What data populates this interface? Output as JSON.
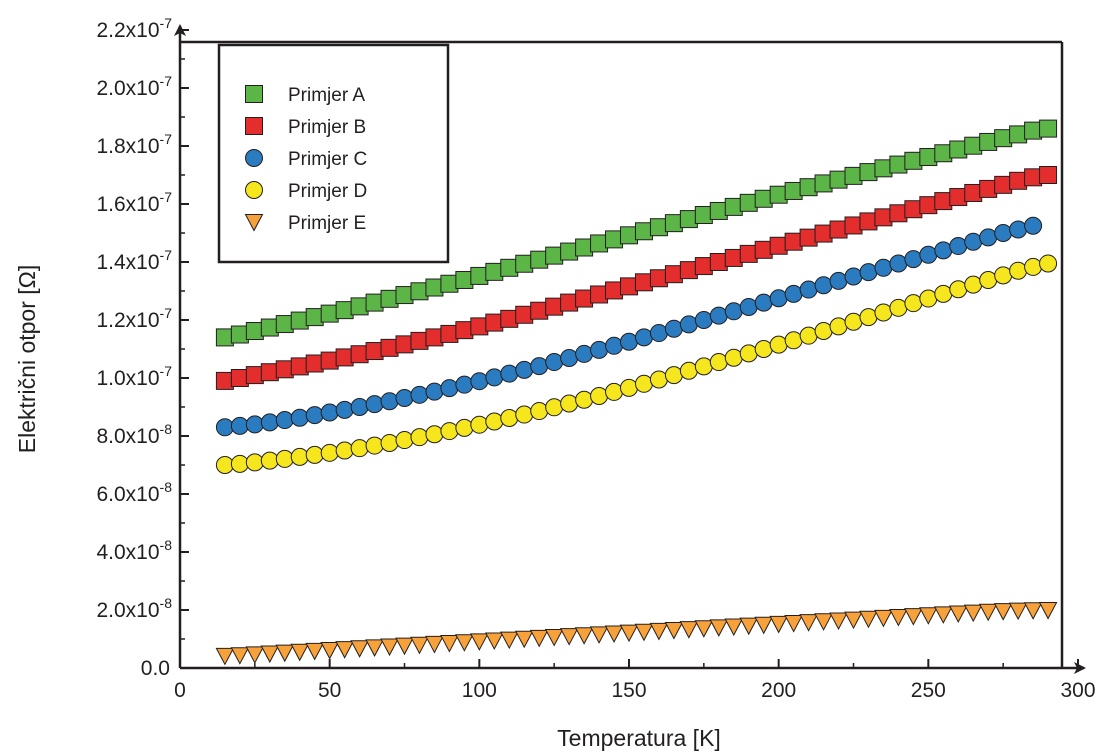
{
  "chart_data": {
    "type": "scatter",
    "xlabel": "Temperatura [K]",
    "ylabel": "Električni otpor [Ω]",
    "xlim": [
      0,
      300
    ],
    "ylim": [
      0,
      2.2e-07
    ],
    "x_ticks": [
      {
        "value": 0,
        "label": "0"
      },
      {
        "value": 50,
        "label": "50"
      },
      {
        "value": 100,
        "label": "100"
      },
      {
        "value": 150,
        "label": "150"
      },
      {
        "value": 200,
        "label": "200"
      },
      {
        "value": 250,
        "label": "250"
      },
      {
        "value": 300,
        "label": "300"
      }
    ],
    "y_ticks": [
      {
        "value": 0,
        "mantissa": "0.0",
        "exponent": ""
      },
      {
        "value": 2e-08,
        "mantissa": "2.0x10",
        "exponent": "-8"
      },
      {
        "value": 4e-08,
        "mantissa": "4.0x10",
        "exponent": "-8"
      },
      {
        "value": 6e-08,
        "mantissa": "6.0x10",
        "exponent": "-8"
      },
      {
        "value": 8e-08,
        "mantissa": "8.0x10",
        "exponent": "-8"
      },
      {
        "value": 1e-07,
        "mantissa": "1.0x10",
        "exponent": "-7"
      },
      {
        "value": 1.2e-07,
        "mantissa": "1.2x10",
        "exponent": "-7"
      },
      {
        "value": 1.4e-07,
        "mantissa": "1.4x10",
        "exponent": "-7"
      },
      {
        "value": 1.6e-07,
        "mantissa": "1.6x10",
        "exponent": "-7"
      },
      {
        "value": 1.8e-07,
        "mantissa": "1.8x10",
        "exponent": "-7"
      },
      {
        "value": 2e-07,
        "mantissa": "2.0x10",
        "exponent": "-7"
      },
      {
        "value": 2.2e-07,
        "mantissa": "2.2x10",
        "exponent": "-7"
      }
    ],
    "grid": false,
    "legend_position": "top-left",
    "series": [
      {
        "name": "Primjer A",
        "marker": "square",
        "color": "#5cb547",
        "x": [
          15,
          20,
          25,
          30,
          35,
          40,
          45,
          50,
          55,
          60,
          65,
          70,
          75,
          80,
          85,
          90,
          95,
          100,
          105,
          110,
          115,
          120,
          125,
          130,
          135,
          140,
          145,
          150,
          155,
          160,
          165,
          170,
          175,
          180,
          185,
          190,
          195,
          200,
          205,
          210,
          215,
          220,
          225,
          230,
          235,
          240,
          245,
          250,
          255,
          260,
          265,
          270,
          275,
          280,
          285,
          290
        ],
        "y": [
          1.14e-07,
          1.15e-07,
          1.162e-07,
          1.174e-07,
          1.186e-07,
          1.198e-07,
          1.21e-07,
          1.222e-07,
          1.234e-07,
          1.247e-07,
          1.26e-07,
          1.273e-07,
          1.286e-07,
          1.299e-07,
          1.312e-07,
          1.325e-07,
          1.338e-07,
          1.352e-07,
          1.366e-07,
          1.38e-07,
          1.394e-07,
          1.408e-07,
          1.422e-07,
          1.436e-07,
          1.45e-07,
          1.464e-07,
          1.478e-07,
          1.492e-07,
          1.506e-07,
          1.52e-07,
          1.534e-07,
          1.548e-07,
          1.562e-07,
          1.576e-07,
          1.59e-07,
          1.604e-07,
          1.618e-07,
          1.632e-07,
          1.645e-07,
          1.658e-07,
          1.671e-07,
          1.684e-07,
          1.697e-07,
          1.71e-07,
          1.723e-07,
          1.736e-07,
          1.749e-07,
          1.762e-07,
          1.775e-07,
          1.788e-07,
          1.801e-07,
          1.814e-07,
          1.827e-07,
          1.84e-07,
          1.853e-07,
          1.86e-07
        ]
      },
      {
        "name": "Primjer B",
        "marker": "square",
        "color": "#e42d2d",
        "x": [
          15,
          20,
          25,
          30,
          35,
          40,
          45,
          50,
          55,
          60,
          65,
          70,
          75,
          80,
          85,
          90,
          95,
          100,
          105,
          110,
          115,
          120,
          125,
          130,
          135,
          140,
          145,
          150,
          155,
          160,
          165,
          170,
          175,
          180,
          185,
          190,
          195,
          200,
          205,
          210,
          215,
          220,
          225,
          230,
          235,
          240,
          245,
          250,
          255,
          260,
          265,
          270,
          275,
          280,
          285,
          290
        ],
        "y": [
          9.9e-08,
          1e-07,
          1.01e-07,
          1.02e-07,
          1.03e-07,
          1.04e-07,
          1.05e-07,
          1.06e-07,
          1.071e-07,
          1.082e-07,
          1.093e-07,
          1.104e-07,
          1.116e-07,
          1.128e-07,
          1.14e-07,
          1.152e-07,
          1.165e-07,
          1.178e-07,
          1.191e-07,
          1.204e-07,
          1.218e-07,
          1.232e-07,
          1.246e-07,
          1.26e-07,
          1.274e-07,
          1.288e-07,
          1.302e-07,
          1.316e-07,
          1.33e-07,
          1.344e-07,
          1.358e-07,
          1.372e-07,
          1.386e-07,
          1.4e-07,
          1.414e-07,
          1.428e-07,
          1.442e-07,
          1.456e-07,
          1.47e-07,
          1.484e-07,
          1.498e-07,
          1.512e-07,
          1.526e-07,
          1.54e-07,
          1.554e-07,
          1.568e-07,
          1.582e-07,
          1.596e-07,
          1.61e-07,
          1.624e-07,
          1.638e-07,
          1.652e-07,
          1.666e-07,
          1.68e-07,
          1.692e-07,
          1.7e-07
        ]
      },
      {
        "name": "Primjer C",
        "marker": "circle",
        "color": "#2b7bc0",
        "x": [
          15,
          20,
          25,
          30,
          35,
          40,
          45,
          50,
          55,
          60,
          65,
          70,
          75,
          80,
          85,
          90,
          95,
          100,
          105,
          110,
          115,
          120,
          125,
          130,
          135,
          140,
          145,
          150,
          155,
          160,
          165,
          170,
          175,
          180,
          185,
          190,
          195,
          200,
          205,
          210,
          215,
          220,
          225,
          230,
          235,
          240,
          245,
          250,
          255,
          260,
          265,
          270,
          275,
          280,
          285
        ],
        "y": [
          8.3e-08,
          8.35e-08,
          8.4e-08,
          8.47e-08,
          8.55e-08,
          8.63e-08,
          8.72e-08,
          8.81e-08,
          8.9e-08,
          9e-08,
          9.1e-08,
          9.2e-08,
          9.31e-08,
          9.42e-08,
          9.53e-08,
          9.65e-08,
          9.77e-08,
          9.89e-08,
          1.002e-07,
          1.015e-07,
          1.028e-07,
          1.041e-07,
          1.055e-07,
          1.069e-07,
          1.083e-07,
          1.097e-07,
          1.111e-07,
          1.125e-07,
          1.14e-07,
          1.155e-07,
          1.17e-07,
          1.185e-07,
          1.2e-07,
          1.215e-07,
          1.23e-07,
          1.245e-07,
          1.26e-07,
          1.275e-07,
          1.29e-07,
          1.305e-07,
          1.32e-07,
          1.335e-07,
          1.35e-07,
          1.365e-07,
          1.38e-07,
          1.395e-07,
          1.41e-07,
          1.425e-07,
          1.44e-07,
          1.455e-07,
          1.47e-07,
          1.485e-07,
          1.5e-07,
          1.512e-07,
          1.525e-07
        ]
      },
      {
        "name": "Primjer D",
        "marker": "circle",
        "color": "#f5e61e",
        "x": [
          15,
          20,
          25,
          30,
          35,
          40,
          45,
          50,
          55,
          60,
          65,
          70,
          75,
          80,
          85,
          90,
          95,
          100,
          105,
          110,
          115,
          120,
          125,
          130,
          135,
          140,
          145,
          150,
          155,
          160,
          165,
          170,
          175,
          180,
          185,
          190,
          195,
          200,
          205,
          210,
          215,
          220,
          225,
          230,
          235,
          240,
          245,
          250,
          255,
          260,
          265,
          270,
          275,
          280,
          285,
          290
        ],
        "y": [
          7e-08,
          7.04e-08,
          7.09e-08,
          7.15e-08,
          7.21e-08,
          7.28e-08,
          7.35e-08,
          7.42e-08,
          7.5e-08,
          7.58e-08,
          7.67e-08,
          7.76e-08,
          7.86e-08,
          7.96e-08,
          8.06e-08,
          8.17e-08,
          8.28e-08,
          8.39e-08,
          8.5e-08,
          8.62e-08,
          8.74e-08,
          8.86e-08,
          8.99e-08,
          9.12e-08,
          9.25e-08,
          9.38e-08,
          9.52e-08,
          9.66e-08,
          9.8e-08,
          9.95e-08,
          1.01e-07,
          1.025e-07,
          1.04e-07,
          1.055e-07,
          1.07e-07,
          1.085e-07,
          1.1e-07,
          1.115e-07,
          1.13e-07,
          1.146e-07,
          1.162e-07,
          1.178e-07,
          1.194e-07,
          1.21e-07,
          1.226e-07,
          1.242e-07,
          1.258e-07,
          1.274e-07,
          1.29e-07,
          1.306e-07,
          1.322e-07,
          1.338e-07,
          1.354e-07,
          1.37e-07,
          1.383e-07,
          1.395e-07
        ]
      },
      {
        "name": "Primjer E",
        "marker": "triangle-down",
        "color": "#f7a13a",
        "x": [
          15,
          20,
          25,
          30,
          35,
          40,
          45,
          50,
          55,
          60,
          65,
          70,
          75,
          80,
          85,
          90,
          95,
          100,
          105,
          110,
          115,
          120,
          125,
          130,
          135,
          140,
          145,
          150,
          155,
          160,
          165,
          170,
          175,
          180,
          185,
          190,
          195,
          200,
          205,
          210,
          215,
          220,
          225,
          230,
          235,
          240,
          245,
          250,
          255,
          260,
          265,
          270,
          275,
          280,
          285,
          290
        ],
        "y": [
          4.2e-09,
          4.4e-09,
          4.7e-09,
          5e-09,
          5.3e-09,
          5.6e-09,
          5.9e-09,
          6.2e-09,
          6.5e-09,
          6.8e-09,
          7.1e-09,
          7.4e-09,
          7.7e-09,
          8e-09,
          8.3e-09,
          8.6e-09,
          8.9e-09,
          9.2e-09,
          9.5e-09,
          9.8e-09,
          1.01e-08,
          1.04e-08,
          1.07e-08,
          1.1e-08,
          1.13e-08,
          1.16e-08,
          1.19e-08,
          1.22e-08,
          1.25e-08,
          1.28e-08,
          1.31e-08,
          1.34e-08,
          1.37e-08,
          1.4e-08,
          1.43e-08,
          1.46e-08,
          1.49e-08,
          1.52e-08,
          1.55e-08,
          1.58e-08,
          1.61e-08,
          1.64e-08,
          1.67e-08,
          1.7e-08,
          1.73e-08,
          1.76e-08,
          1.79e-08,
          1.82e-08,
          1.85e-08,
          1.88e-08,
          1.91e-08,
          1.94e-08,
          1.96e-08,
          1.98e-08,
          1.99e-08,
          2e-08
        ]
      }
    ]
  }
}
